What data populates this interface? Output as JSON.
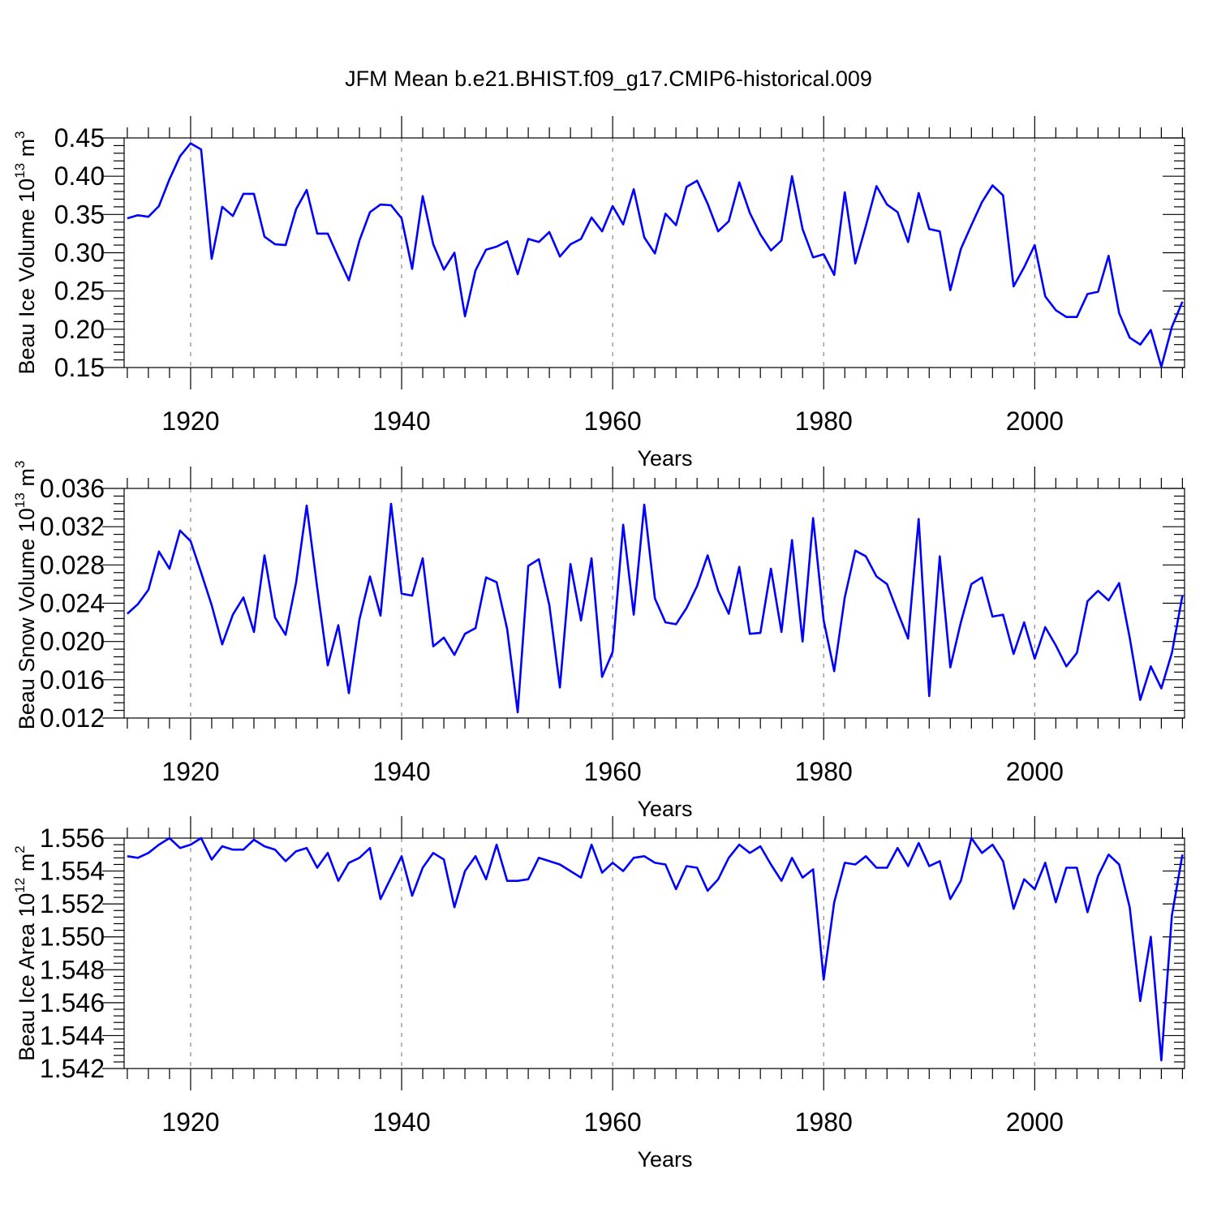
{
  "chart_data": {
    "type": "line",
    "title": "JFM Mean b.e21.BHIST.f09_g17.CMIP6-historical.009",
    "line_color": "#0000ff",
    "x": [
      1914,
      1915,
      1916,
      1917,
      1918,
      1919,
      1920,
      1921,
      1922,
      1923,
      1924,
      1925,
      1926,
      1927,
      1928,
      1929,
      1930,
      1931,
      1932,
      1933,
      1934,
      1935,
      1936,
      1937,
      1938,
      1939,
      1940,
      1941,
      1942,
      1943,
      1944,
      1945,
      1946,
      1947,
      1948,
      1949,
      1950,
      1951,
      1952,
      1953,
      1954,
      1955,
      1956,
      1957,
      1958,
      1959,
      1960,
      1961,
      1962,
      1963,
      1964,
      1965,
      1966,
      1967,
      1968,
      1969,
      1970,
      1971,
      1972,
      1973,
      1974,
      1975,
      1976,
      1977,
      1978,
      1979,
      1980,
      1981,
      1982,
      1983,
      1984,
      1985,
      1986,
      1987,
      1988,
      1989,
      1990,
      1991,
      1992,
      1993,
      1994,
      1995,
      1996,
      1997,
      1998,
      1999,
      2000,
      2001,
      2002,
      2003,
      2004,
      2005,
      2006,
      2007,
      2008,
      2009,
      2010,
      2011,
      2012,
      2013,
      2014
    ],
    "xlim": [
      1913.7,
      2014.2
    ],
    "xticks": [
      1920,
      1940,
      1960,
      1980,
      2000
    ],
    "xtick_labels": [
      "1920",
      "1940",
      "1960",
      "1980",
      "2000"
    ],
    "panels": [
      {
        "ylabel_text": "Beau Ice Volume 10",
        "ylabel_exp": "13",
        "ylabel_unit": "m",
        "ylabel_unit_exp": "3",
        "xlabel": "Years",
        "ylim": [
          0.15,
          0.45
        ],
        "yticks": [
          0.15,
          0.2,
          0.25,
          0.3,
          0.35,
          0.4,
          0.45
        ],
        "ytick_labels": [
          "0.15",
          "0.20",
          "0.25",
          "0.30",
          "0.35",
          "0.40",
          "0.45"
        ],
        "values": [
          0.345,
          0.349,
          0.347,
          0.361,
          0.396,
          0.426,
          0.443,
          0.435,
          0.292,
          0.36,
          0.348,
          0.377,
          0.377,
          0.321,
          0.311,
          0.31,
          0.357,
          0.382,
          0.325,
          0.325,
          0.294,
          0.264,
          0.316,
          0.353,
          0.363,
          0.362,
          0.345,
          0.279,
          0.374,
          0.311,
          0.278,
          0.3,
          0.217,
          0.277,
          0.304,
          0.308,
          0.315,
          0.272,
          0.318,
          0.314,
          0.327,
          0.295,
          0.311,
          0.318,
          0.346,
          0.328,
          0.361,
          0.337,
          0.383,
          0.32,
          0.299,
          0.351,
          0.336,
          0.386,
          0.394,
          0.364,
          0.328,
          0.341,
          0.392,
          0.352,
          0.324,
          0.303,
          0.316,
          0.4,
          0.331,
          0.294,
          0.298,
          0.271,
          0.379,
          0.286,
          0.335,
          0.387,
          0.363,
          0.353,
          0.314,
          0.378,
          0.331,
          0.328,
          0.251,
          0.305,
          0.336,
          0.366,
          0.388,
          0.375,
          0.256,
          0.281,
          0.31,
          0.243,
          0.225,
          0.216,
          0.216,
          0.246,
          0.249,
          0.296,
          0.221,
          0.189,
          0.18,
          0.199,
          0.151,
          0.203,
          0.236
        ]
      },
      {
        "ylabel_text": "Beau Snow Volume 10",
        "ylabel_exp": "13",
        "ylabel_unit": "m",
        "ylabel_unit_exp": "3",
        "xlabel": "Years",
        "ylim": [
          0.012,
          0.036
        ],
        "yticks": [
          0.012,
          0.016,
          0.02,
          0.024,
          0.028,
          0.032,
          0.036
        ],
        "ytick_labels": [
          "0.012",
          "0.016",
          "0.020",
          "0.024",
          "0.028",
          "0.032",
          "0.036"
        ],
        "values": [
          0.0229,
          0.0239,
          0.0254,
          0.0294,
          0.0276,
          0.0316,
          0.0305,
          0.0272,
          0.0238,
          0.0197,
          0.0228,
          0.0246,
          0.021,
          0.029,
          0.0225,
          0.0207,
          0.0262,
          0.0342,
          0.0256,
          0.0175,
          0.0217,
          0.0146,
          0.0223,
          0.0268,
          0.0227,
          0.0344,
          0.025,
          0.0248,
          0.0287,
          0.0195,
          0.0204,
          0.0186,
          0.0208,
          0.0214,
          0.0267,
          0.0262,
          0.0213,
          0.0126,
          0.0279,
          0.0286,
          0.0238,
          0.0152,
          0.0281,
          0.0222,
          0.0287,
          0.0163,
          0.0189,
          0.0322,
          0.0228,
          0.0343,
          0.0245,
          0.022,
          0.0218,
          0.0235,
          0.0258,
          0.029,
          0.0253,
          0.0229,
          0.0278,
          0.0208,
          0.0209,
          0.0276,
          0.021,
          0.0306,
          0.02,
          0.0329,
          0.0222,
          0.0169,
          0.0246,
          0.0295,
          0.0289,
          0.0268,
          0.026,
          0.0231,
          0.0203,
          0.0328,
          0.0143,
          0.0289,
          0.0173,
          0.022,
          0.026,
          0.0267,
          0.0226,
          0.0228,
          0.0187,
          0.022,
          0.0182,
          0.0215,
          0.0196,
          0.0174,
          0.0188,
          0.0242,
          0.0253,
          0.0243,
          0.0261,
          0.0204,
          0.0139,
          0.0174,
          0.0151,
          0.0188,
          0.0248
        ]
      },
      {
        "ylabel_text": "Beau Ice Area 10",
        "ylabel_exp": "12",
        "ylabel_unit": "m",
        "ylabel_unit_exp": "2",
        "xlabel": "Years",
        "ylim": [
          1.542,
          1.556
        ],
        "yticks": [
          1.542,
          1.544,
          1.546,
          1.548,
          1.55,
          1.552,
          1.554,
          1.556
        ],
        "ytick_labels": [
          "1.542",
          "1.544",
          "1.546",
          "1.548",
          "1.550",
          "1.552",
          "1.554",
          "1.556"
        ],
        "values": [
          1.5549,
          1.5548,
          1.5551,
          1.5556,
          1.556,
          1.5554,
          1.5556,
          1.556,
          1.5547,
          1.5555,
          1.5553,
          1.5553,
          1.5559,
          1.5555,
          1.5553,
          1.5546,
          1.5552,
          1.5554,
          1.5542,
          1.5551,
          1.5534,
          1.5545,
          1.5548,
          1.5554,
          1.5523,
          1.5536,
          1.5549,
          1.5525,
          1.5542,
          1.5551,
          1.5547,
          1.5518,
          1.554,
          1.5549,
          1.5535,
          1.5556,
          1.5534,
          1.5534,
          1.5535,
          1.5548,
          1.5546,
          1.5544,
          1.554,
          1.5536,
          1.5556,
          1.5539,
          1.5545,
          1.554,
          1.5548,
          1.5549,
          1.5545,
          1.5544,
          1.5529,
          1.5543,
          1.5542,
          1.5528,
          1.5535,
          1.5548,
          1.5556,
          1.5551,
          1.5555,
          1.5544,
          1.5534,
          1.5548,
          1.5536,
          1.5541,
          1.5474,
          1.5521,
          1.5545,
          1.5544,
          1.5549,
          1.5542,
          1.5542,
          1.5554,
          1.5543,
          1.5557,
          1.5543,
          1.5546,
          1.5523,
          1.5534,
          1.556,
          1.5551,
          1.5556,
          1.5546,
          1.5517,
          1.5535,
          1.5529,
          1.5545,
          1.5521,
          1.5542,
          1.5542,
          1.5515,
          1.5537,
          1.555,
          1.5544,
          1.5518,
          1.5461,
          1.55,
          1.5425,
          1.5513,
          1.555
        ]
      }
    ]
  }
}
